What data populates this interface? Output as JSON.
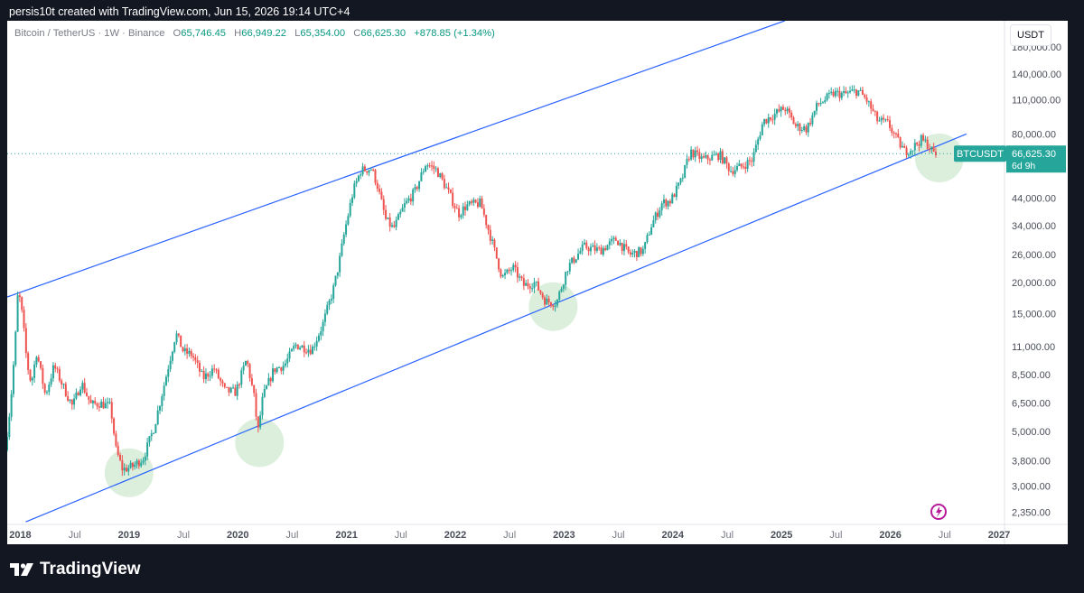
{
  "caption": "persis10t created with TradingView.com, Jun 15, 2026 19:14 UTC+4",
  "legend": {
    "symbol": "Bitcoin / TetherUS · 1W · Binance",
    "o_label": "O",
    "o": "65,746.45",
    "h_label": "H",
    "h": "66,949.22",
    "l_label": "L",
    "l": "65,354.00",
    "c_label": "C",
    "c": "66,625.30",
    "change": "+878.85 (+1.34%)"
  },
  "currency_button": "USDT",
  "price_tag": {
    "symbol": "BTCUSDT",
    "price": "66,625.30",
    "countdown": "6d 9h",
    "color": "#26a69a"
  },
  "footer_brand": "TradingView",
  "chart_data": {
    "type": "candlestick",
    "scale": "log",
    "ylim": [
      2100,
      230000
    ],
    "xlim": [
      2017.88,
      2027.05
    ],
    "y_ticks": [
      {
        "v": 180000,
        "label": "180,000.00"
      },
      {
        "v": 140000,
        "label": "140,000.00"
      },
      {
        "v": 110000,
        "label": "110,000.00"
      },
      {
        "v": 80000,
        "label": "80,000.00"
      },
      {
        "v": 44000,
        "label": "44,000.00"
      },
      {
        "v": 34000,
        "label": "34,000.00"
      },
      {
        "v": 26000,
        "label": "26,000.00"
      },
      {
        "v": 20000,
        "label": "20,000.00"
      },
      {
        "v": 15000,
        "label": "15,000.00"
      },
      {
        "v": 11000,
        "label": "11,000.00"
      },
      {
        "v": 8500,
        "label": "8,500.00"
      },
      {
        "v": 6500,
        "label": "6,500.00"
      },
      {
        "v": 5000,
        "label": "5,000.00"
      },
      {
        "v": 3800,
        "label": "3,800.00"
      },
      {
        "v": 3000,
        "label": "3,000.00"
      },
      {
        "v": 2350,
        "label": "2,350.00"
      }
    ],
    "x_ticks": [
      {
        "t": 2018.0,
        "label": "2018",
        "year": true
      },
      {
        "t": 2018.5,
        "label": "Jul",
        "year": false
      },
      {
        "t": 2019.0,
        "label": "2019",
        "year": true
      },
      {
        "t": 2019.5,
        "label": "Jul",
        "year": false
      },
      {
        "t": 2020.0,
        "label": "2020",
        "year": true
      },
      {
        "t": 2020.5,
        "label": "Jul",
        "year": false
      },
      {
        "t": 2021.0,
        "label": "2021",
        "year": true
      },
      {
        "t": 2021.5,
        "label": "Jul",
        "year": false
      },
      {
        "t": 2022.0,
        "label": "2022",
        "year": true
      },
      {
        "t": 2022.5,
        "label": "Jul",
        "year": false
      },
      {
        "t": 2023.0,
        "label": "2023",
        "year": true
      },
      {
        "t": 2023.5,
        "label": "Jul",
        "year": false
      },
      {
        "t": 2024.0,
        "label": "2024",
        "year": true
      },
      {
        "t": 2024.5,
        "label": "Jul",
        "year": false
      },
      {
        "t": 2025.0,
        "label": "2025",
        "year": true
      },
      {
        "t": 2025.5,
        "label": "Jul",
        "year": false
      },
      {
        "t": 2026.0,
        "label": "2026",
        "year": true
      },
      {
        "t": 2026.5,
        "label": "Jul",
        "year": false
      },
      {
        "t": 2027.0,
        "label": "2027",
        "year": true
      }
    ],
    "price_path": [
      [
        2017.88,
        4200
      ],
      [
        2017.93,
        6500
      ],
      [
        2017.97,
        11000
      ],
      [
        2018.0,
        19000
      ],
      [
        2018.04,
        14500
      ],
      [
        2018.08,
        9500
      ],
      [
        2018.12,
        7800
      ],
      [
        2018.17,
        10500
      ],
      [
        2018.25,
        7000
      ],
      [
        2018.33,
        9200
      ],
      [
        2018.42,
        7500
      ],
      [
        2018.5,
        6300
      ],
      [
        2018.58,
        7900
      ],
      [
        2018.67,
        6400
      ],
      [
        2018.75,
        6500
      ],
      [
        2018.85,
        6300
      ],
      [
        2018.9,
        4200
      ],
      [
        2018.96,
        3500
      ],
      [
        2019.05,
        3600
      ],
      [
        2019.15,
        3900
      ],
      [
        2019.25,
        5200
      ],
      [
        2019.35,
        8000
      ],
      [
        2019.45,
        12500
      ],
      [
        2019.52,
        10500
      ],
      [
        2019.6,
        10200
      ],
      [
        2019.7,
        8200
      ],
      [
        2019.8,
        9000
      ],
      [
        2019.9,
        7300
      ],
      [
        2020.0,
        7200
      ],
      [
        2020.1,
        9800
      ],
      [
        2020.18,
        6500
      ],
      [
        2020.2,
        4800
      ],
      [
        2020.25,
        6900
      ],
      [
        2020.35,
        8900
      ],
      [
        2020.45,
        9300
      ],
      [
        2020.55,
        11200
      ],
      [
        2020.7,
        10700
      ],
      [
        2020.8,
        13500
      ],
      [
        2020.9,
        19000
      ],
      [
        2020.95,
        24000
      ],
      [
        2021.0,
        32000
      ],
      [
        2021.08,
        47000
      ],
      [
        2021.15,
        57000
      ],
      [
        2021.25,
        58000
      ],
      [
        2021.3,
        50000
      ],
      [
        2021.38,
        36000
      ],
      [
        2021.45,
        33000
      ],
      [
        2021.55,
        41000
      ],
      [
        2021.65,
        47000
      ],
      [
        2021.75,
        61000
      ],
      [
        2021.85,
        57000
      ],
      [
        2021.95,
        47000
      ],
      [
        2022.05,
        38000
      ],
      [
        2022.12,
        41000
      ],
      [
        2022.25,
        42000
      ],
      [
        2022.35,
        30000
      ],
      [
        2022.45,
        21000
      ],
      [
        2022.55,
        23000
      ],
      [
        2022.65,
        19500
      ],
      [
        2022.75,
        20000
      ],
      [
        2022.85,
        16800
      ],
      [
        2022.95,
        16600
      ],
      [
        2023.05,
        23000
      ],
      [
        2023.2,
        28000
      ],
      [
        2023.35,
        27000
      ],
      [
        2023.5,
        30000
      ],
      [
        2023.62,
        26000
      ],
      [
        2023.75,
        27000
      ],
      [
        2023.82,
        34000
      ],
      [
        2023.92,
        42000
      ],
      [
        2024.0,
        43000
      ],
      [
        2024.1,
        52000
      ],
      [
        2024.18,
        68000
      ],
      [
        2024.3,
        63000
      ],
      [
        2024.45,
        66000
      ],
      [
        2024.55,
        57000
      ],
      [
        2024.65,
        59000
      ],
      [
        2024.75,
        63000
      ],
      [
        2024.85,
        90000
      ],
      [
        2024.95,
        96000
      ],
      [
        2025.05,
        102000
      ],
      [
        2025.15,
        86000
      ],
      [
        2025.25,
        84000
      ],
      [
        2025.35,
        105000
      ],
      [
        2025.5,
        117000
      ],
      [
        2025.6,
        116000
      ],
      [
        2025.72,
        120000
      ],
      [
        2025.8,
        110000
      ],
      [
        2025.9,
        91000
      ],
      [
        2026.0,
        88000
      ],
      [
        2026.08,
        76000
      ],
      [
        2026.15,
        68000
      ],
      [
        2026.22,
        70000
      ],
      [
        2026.3,
        76000
      ],
      [
        2026.36,
        73000
      ],
      [
        2026.42,
        66625
      ]
    ],
    "channel": {
      "color": "#2962ff",
      "upper": [
        [
          2017.88,
          17500
        ],
        [
          2021.3,
          60000
        ]
      ],
      "lower": [
        [
          2018.05,
          2150
        ],
        [
          2026.7,
          80000
        ]
      ]
    },
    "highlight_zones": [
      {
        "t": 2019.0,
        "v": 3400
      },
      {
        "t": 2020.2,
        "v": 4500
      },
      {
        "t": 2022.9,
        "v": 16000
      },
      {
        "t": 2026.45,
        "v": 64000
      }
    ]
  }
}
